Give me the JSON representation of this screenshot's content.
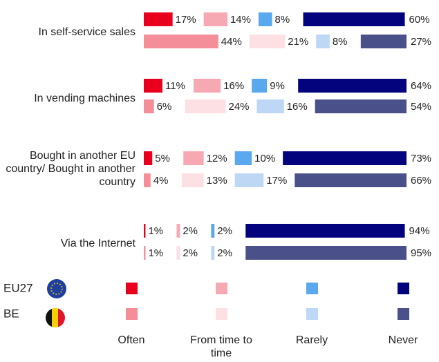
{
  "chart_data": {
    "type": "bar",
    "orientation": "horizontal",
    "categories": [
      "In self-service sales",
      "In vending machines",
      "Bought in another EU country/ Bought in another country",
      "Via the Internet"
    ],
    "series_names": [
      "Often",
      "From time to time",
      "Rarely",
      "Never"
    ],
    "xlim": [
      0,
      100
    ],
    "groups": [
      {
        "name": "EU27",
        "colors": [
          "#e8001c",
          "#f7a9b3",
          "#5aa9ee",
          "#03037e"
        ],
        "values": [
          [
            17,
            14,
            8,
            60
          ],
          [
            11,
            16,
            9,
            64
          ],
          [
            5,
            12,
            10,
            73
          ],
          [
            1,
            2,
            2,
            94
          ]
        ],
        "value_labels": [
          [
            "17%",
            "14%",
            "8%",
            "60%"
          ],
          [
            "11%",
            "16%",
            "9%",
            "64%"
          ],
          [
            "5%",
            "12%",
            "10%",
            "73%"
          ],
          [
            "1%",
            "2%",
            "2%",
            "94%"
          ]
        ]
      },
      {
        "name": "BE",
        "colors": [
          "#f48e99",
          "#fde0e4",
          "#bdd7f4",
          "#4a5089"
        ],
        "values": [
          [
            44,
            21,
            8,
            27
          ],
          [
            6,
            24,
            16,
            54
          ],
          [
            4,
            13,
            17,
            66
          ],
          [
            1,
            2,
            2,
            95
          ]
        ],
        "value_labels": [
          [
            "44%",
            "21%",
            "8%",
            "27%"
          ],
          [
            "6%",
            "24%",
            "16%",
            "54%"
          ],
          [
            "4%",
            "13%",
            "17%",
            "66%"
          ],
          [
            "1%",
            "2%",
            "2%",
            "95%"
          ]
        ]
      }
    ]
  }
}
